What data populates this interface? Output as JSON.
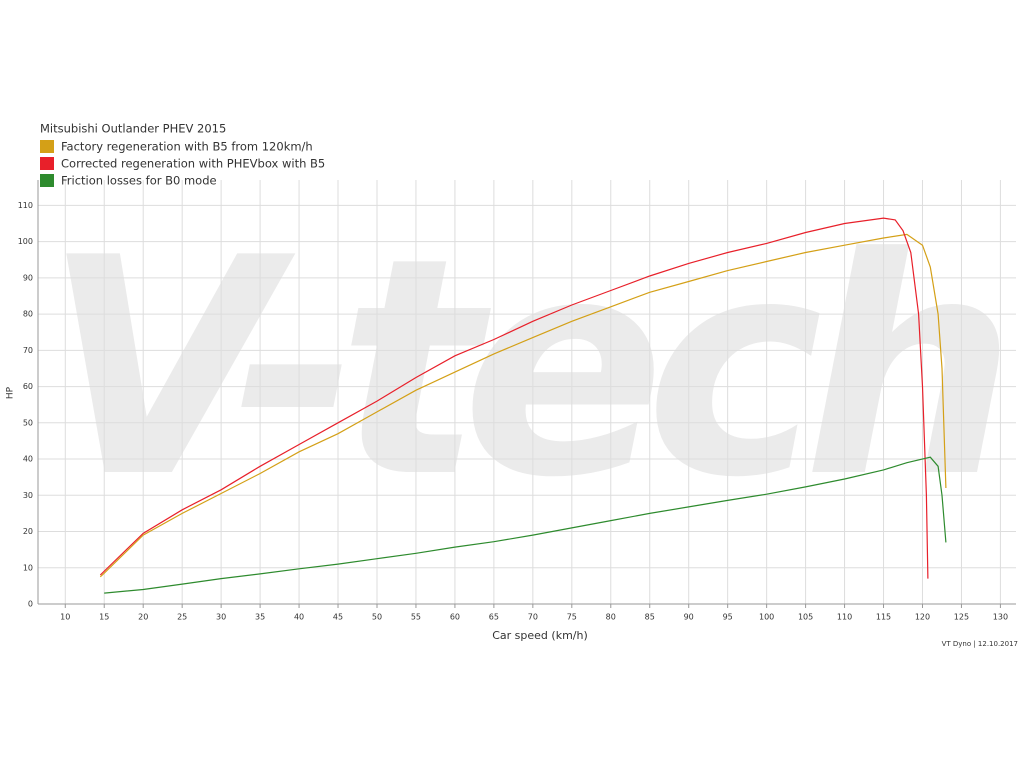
{
  "chart_data": {
    "type": "line",
    "title": "Mitsubishi Outlander PHEV 2015",
    "watermark": "V-tech",
    "x_label": "Car speed (km/h)",
    "y_label": "HP",
    "footer": "VT Dyno | 12.10.2017",
    "xlim": [
      6.5,
      132
    ],
    "ylim": [
      0,
      117
    ],
    "xticks": [
      10,
      15,
      20,
      25,
      30,
      35,
      40,
      45,
      50,
      55,
      60,
      65,
      70,
      75,
      80,
      85,
      90,
      95,
      100,
      105,
      110,
      115,
      120,
      125,
      130
    ],
    "yticks": [
      0,
      10,
      20,
      30,
      40,
      50,
      60,
      70,
      80,
      90,
      100,
      110
    ],
    "grid": true,
    "series": [
      {
        "name": "Factory regeneration with B5 from 120km/h",
        "color": "#d4a017",
        "x": [
          14.5,
          15,
          20,
          25,
          30,
          35,
          40,
          45,
          50,
          55,
          60,
          65,
          70,
          75,
          80,
          85,
          90,
          95,
          100,
          105,
          110,
          115,
          118,
          120,
          121,
          122,
          122.5,
          123
        ],
        "values": [
          7.5,
          8.5,
          19,
          25,
          30.5,
          36,
          42,
          47,
          53,
          59,
          64,
          69,
          73.5,
          78,
          82,
          86,
          89,
          92,
          94.5,
          97,
          99,
          101,
          102,
          99,
          93,
          80,
          65,
          32
        ]
      },
      {
        "name": "Corrected regeneration with PHEVbox with B5",
        "color": "#e8202a",
        "x": [
          14.5,
          20,
          25,
          30,
          35,
          40,
          45,
          50,
          55,
          60,
          65,
          70,
          75,
          80,
          85,
          90,
          95,
          100,
          105,
          110,
          115,
          116.5,
          117.5,
          118.5,
          119.5,
          120,
          120.5,
          120.7
        ],
        "values": [
          8,
          19.5,
          26,
          31.5,
          38,
          44,
          50,
          56,
          62.5,
          68.5,
          73,
          78,
          82.5,
          86.5,
          90.5,
          94,
          97,
          99.5,
          102.5,
          105,
          106.5,
          106,
          103,
          97,
          80,
          60,
          30,
          7
        ]
      },
      {
        "name": "Friction losses for B0 mode",
        "color": "#2e8b2e",
        "x": [
          15,
          20,
          25,
          30,
          35,
          40,
          45,
          50,
          55,
          60,
          65,
          70,
          75,
          80,
          85,
          90,
          95,
          100,
          105,
          110,
          115,
          118,
          121,
          122,
          122.5,
          123
        ],
        "values": [
          3,
          4,
          5.5,
          7,
          8.3,
          9.7,
          11,
          12.5,
          14,
          15.7,
          17.2,
          19,
          21,
          23,
          25,
          26.8,
          28.6,
          30.3,
          32.3,
          34.5,
          37,
          39,
          40.5,
          38,
          30,
          17
        ]
      }
    ]
  }
}
